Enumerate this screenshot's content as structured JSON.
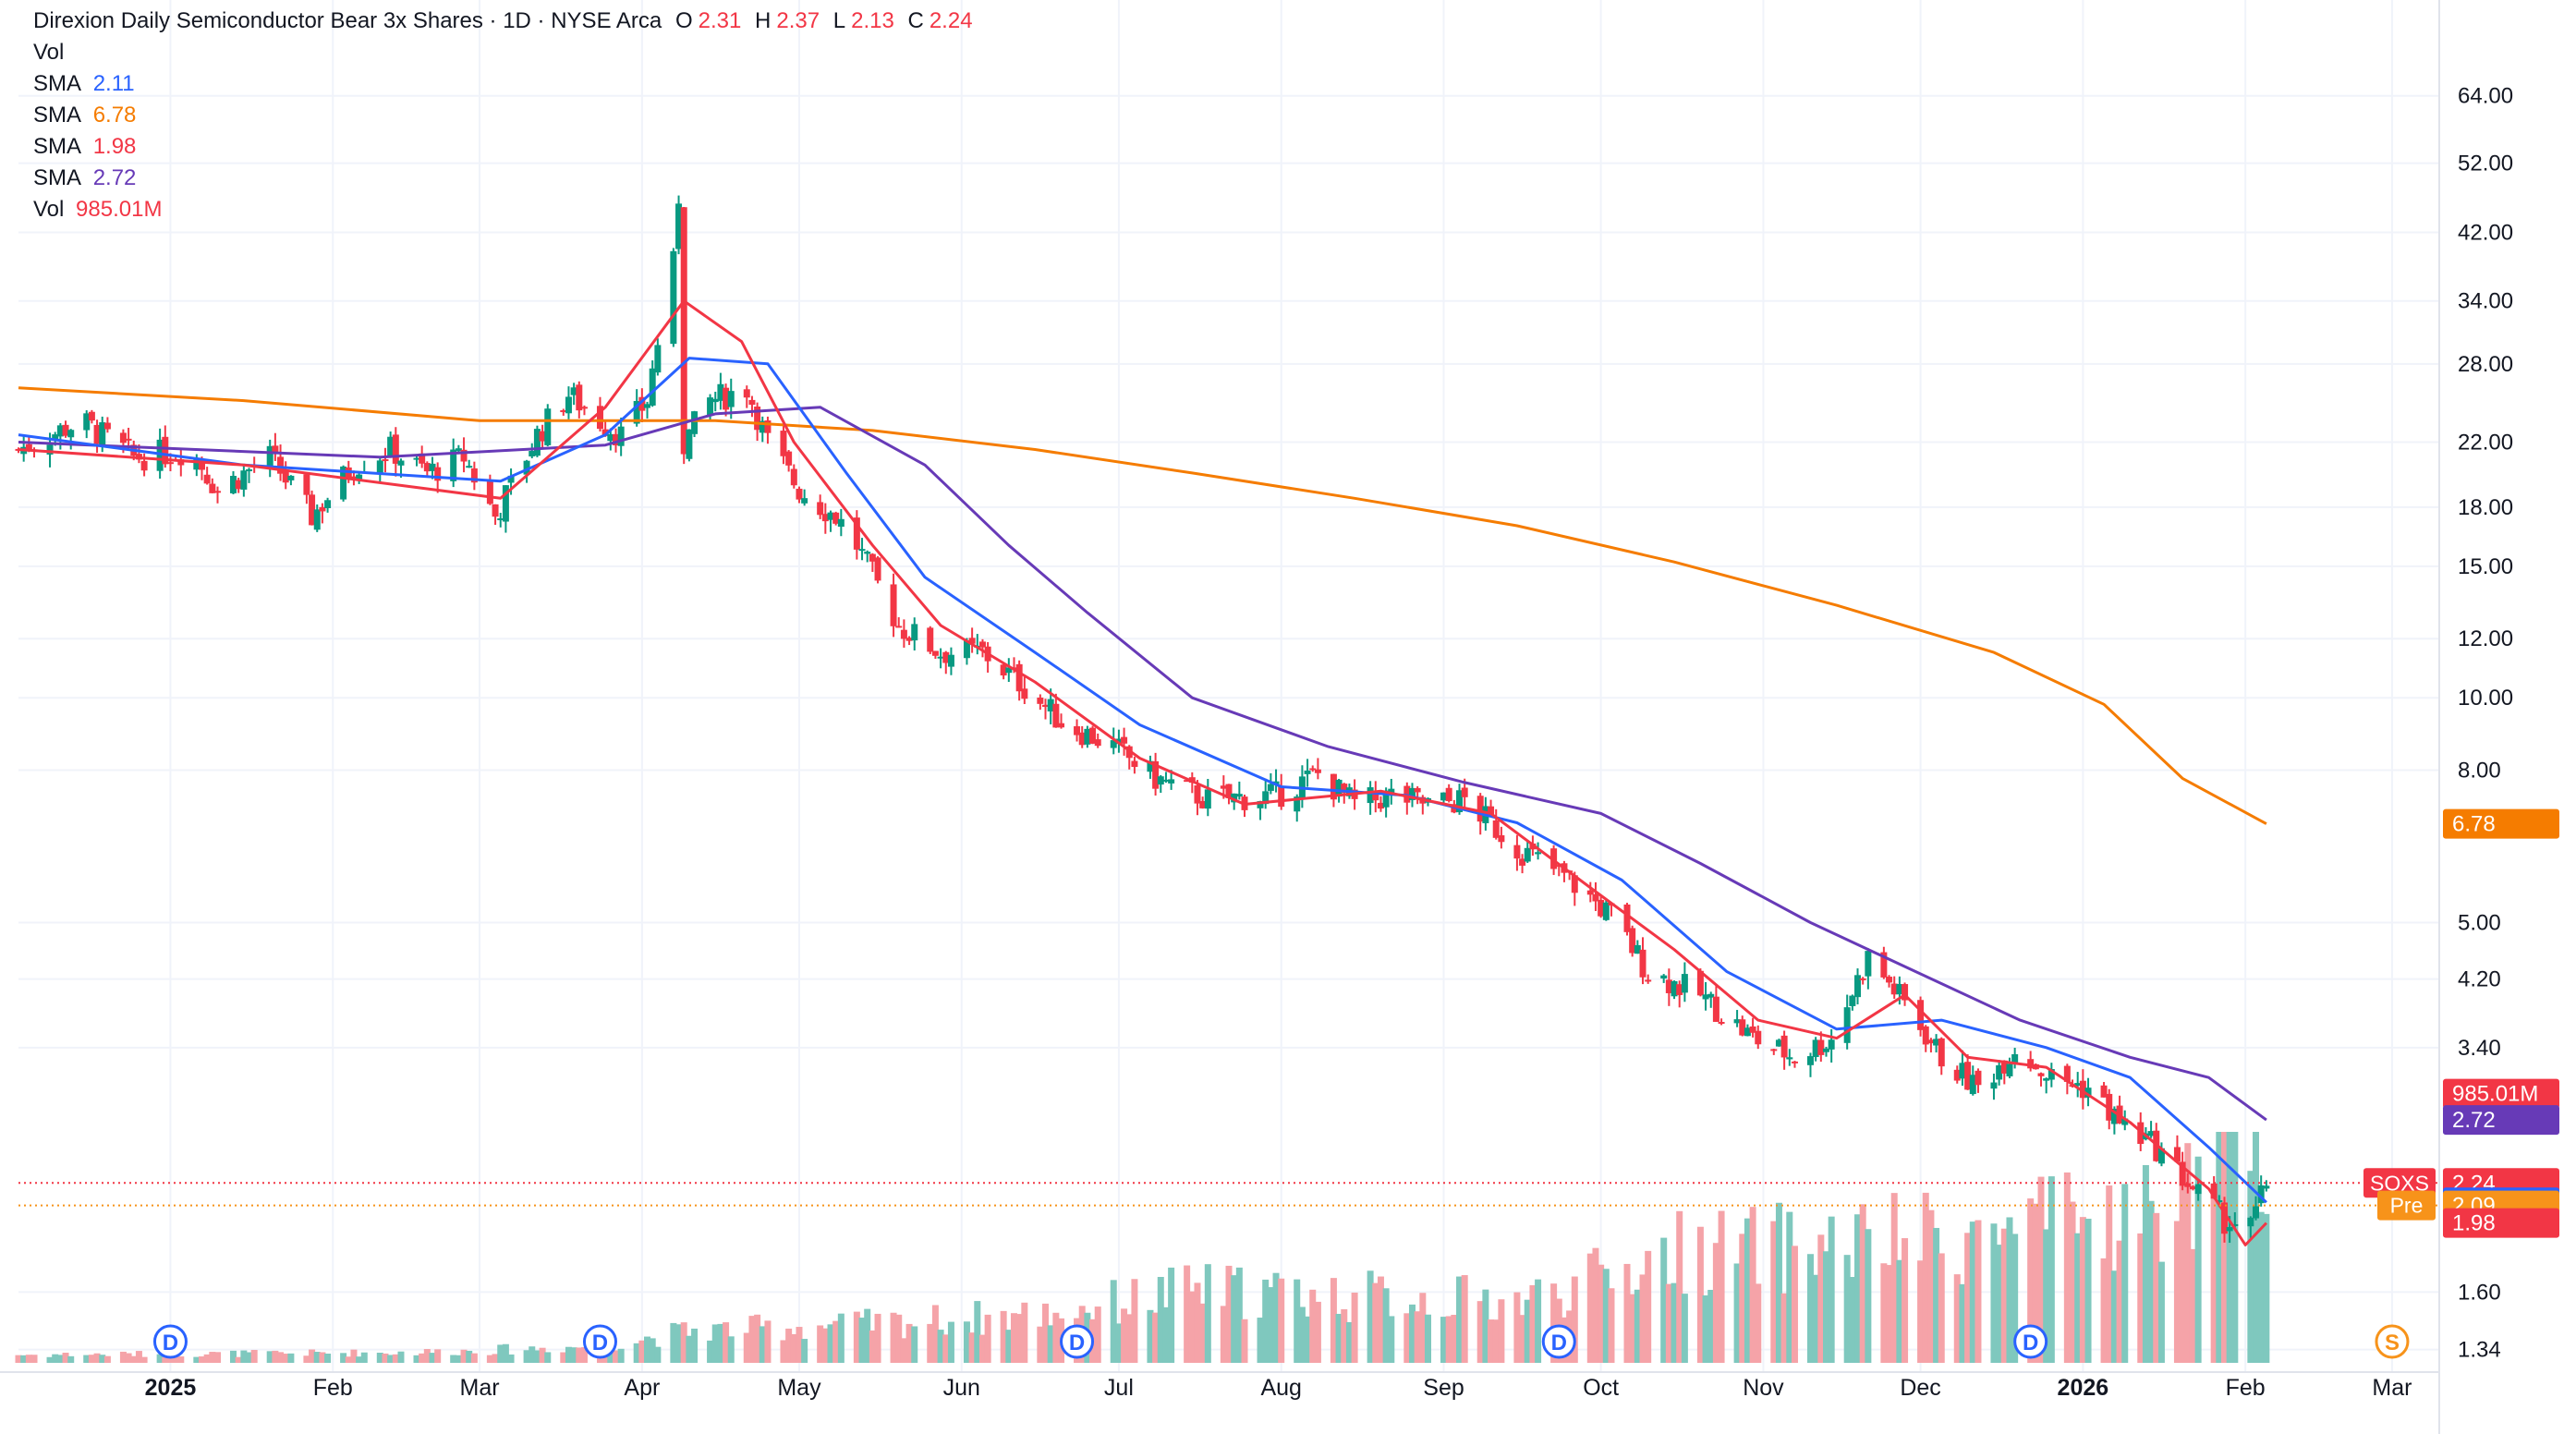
{
  "header": {
    "title": "Direxion Daily Semiconductor Bear 3x Shares · 1D · NYSE Arca",
    "ohlc": [
      {
        "k": "O",
        "v": "2.31"
      },
      {
        "k": "H",
        "v": "2.37"
      },
      {
        "k": "L",
        "v": "2.13"
      },
      {
        "k": "C",
        "v": "2.24"
      }
    ],
    "vol_label": "Vol",
    "studies": [
      {
        "name": "SMA",
        "value": "2.11",
        "color": "#2962ff"
      },
      {
        "name": "SMA",
        "value": "6.78",
        "color": "#f57c00"
      },
      {
        "name": "SMA",
        "value": "1.98",
        "color": "#f23645"
      },
      {
        "name": "SMA",
        "value": "2.72",
        "color": "#673ab7"
      }
    ],
    "vol_study": {
      "name": "Vol",
      "value": "985.01M",
      "color": "#f23645"
    }
  },
  "colors": {
    "up": "#089981",
    "down": "#f23645",
    "vol_up": "#7fc8be",
    "vol_down": "#f5a3a8",
    "grid": "#f0f3fa",
    "axis_text": "#131722",
    "sma_blue": "#2962ff",
    "sma_orange": "#f57c00",
    "sma_red": "#f23645",
    "sma_purple": "#673ab7",
    "symbol_tag": "#f23645",
    "pre_tag": "#f7931a"
  },
  "markers": {
    "dividend_letter": "D",
    "dividend_positions": [
      "2025-01-01",
      "2025-03-24",
      "2025-06-23",
      "2025-09-23",
      "2025-12-22"
    ],
    "split_letter": "S",
    "split_position": "2026-03-01"
  },
  "price_tags": [
    {
      "label": "",
      "value": "6.78",
      "price": 6.78,
      "color": "#f57c00"
    },
    {
      "label": "",
      "value": "985.01M",
      "price": 2.95,
      "color": "#f23645"
    },
    {
      "label": "",
      "value": "2.72",
      "price": 2.72,
      "color": "#673ab7"
    },
    {
      "label": "SOXS",
      "value": "2.24",
      "price": 2.24,
      "color": "#f23645"
    },
    {
      "label": "",
      "value": "2.11",
      "price": 2.11,
      "color": "#2962ff"
    },
    {
      "label": "Pre",
      "value": "2.09",
      "price": 2.09,
      "color": "#f7931a"
    },
    {
      "label": "",
      "value": "1.98",
      "price": 1.98,
      "color": "#f23645"
    }
  ],
  "chart_data": {
    "type": "candlestick",
    "yscale": "log",
    "ylim": [
      1.25,
      86
    ],
    "xlim": [
      "2024-12-03",
      "2026-03-10"
    ],
    "y_ticks": [
      "64.00",
      "52.00",
      "42.00",
      "34.00",
      "28.00",
      "22.00",
      "18.00",
      "15.00",
      "12.00",
      "10.00",
      "8.00",
      "5.00",
      "4.20",
      "3.40",
      "1.60",
      "1.34"
    ],
    "x_ticks": [
      {
        "label": "2025",
        "date": "2025-01-01",
        "bold": true
      },
      {
        "label": "Feb",
        "date": "2025-02-01"
      },
      {
        "label": "Mar",
        "date": "2025-03-01"
      },
      {
        "label": "Apr",
        "date": "2025-04-01"
      },
      {
        "label": "May",
        "date": "2025-05-01"
      },
      {
        "label": "Jun",
        "date": "2025-06-01"
      },
      {
        "label": "Jul",
        "date": "2025-07-01"
      },
      {
        "label": "Aug",
        "date": "2025-08-01"
      },
      {
        "label": "Sep",
        "date": "2025-09-01"
      },
      {
        "label": "Oct",
        "date": "2025-10-01"
      },
      {
        "label": "Nov",
        "date": "2025-11-01"
      },
      {
        "label": "Dec",
        "date": "2025-12-01"
      },
      {
        "label": "2026",
        "date": "2026-01-01",
        "bold": true
      },
      {
        "label": "Feb",
        "date": "2026-02-01"
      },
      {
        "label": "Mar",
        "date": "2026-03-01"
      }
    ],
    "close_path": [
      [
        "2024-12-03",
        21.5
      ],
      [
        "2024-12-15",
        23.5
      ],
      [
        "2024-12-25",
        21.0
      ],
      [
        "2025-01-05",
        21.5
      ],
      [
        "2025-01-10",
        19.0
      ],
      [
        "2025-01-20",
        21.0
      ],
      [
        "2025-01-28",
        17.5
      ],
      [
        "2025-02-05",
        20.5
      ],
      [
        "2025-02-12",
        21.5
      ],
      [
        "2025-02-19",
        20.0
      ],
      [
        "2025-02-26",
        21.0
      ],
      [
        "2025-03-04",
        17.5
      ],
      [
        "2025-03-12",
        22.5
      ],
      [
        "2025-03-18",
        25.5
      ],
      [
        "2025-03-24",
        23.5
      ],
      [
        "2025-03-28",
        22.5
      ],
      [
        "2025-04-02",
        25.0
      ],
      [
        "2025-04-04",
        30.0
      ],
      [
        "2025-04-07",
        38.0
      ],
      [
        "2025-04-08",
        47.0
      ],
      [
        "2025-04-09",
        22.0
      ],
      [
        "2025-04-14",
        25.0
      ],
      [
        "2025-04-21",
        26.0
      ],
      [
        "2025-04-25",
        22.0
      ],
      [
        "2025-05-01",
        19.0
      ],
      [
        "2025-05-08",
        17.5
      ],
      [
        "2025-05-12",
        16.0
      ],
      [
        "2025-05-20",
        12.5
      ],
      [
        "2025-05-28",
        11.5
      ],
      [
        "2025-06-05",
        11.5
      ],
      [
        "2025-06-12",
        10.5
      ],
      [
        "2025-06-20",
        9.3
      ],
      [
        "2025-06-30",
        8.6
      ],
      [
        "2025-07-08",
        7.8
      ],
      [
        "2025-07-18",
        7.3
      ],
      [
        "2025-07-31",
        7.4
      ],
      [
        "2025-08-08",
        7.9
      ],
      [
        "2025-08-15",
        7.2
      ],
      [
        "2025-08-22",
        7.4
      ],
      [
        "2025-08-29",
        7.2
      ],
      [
        "2025-09-05",
        7.3
      ],
      [
        "2025-09-15",
        6.3
      ],
      [
        "2025-09-25",
        5.7
      ],
      [
        "2025-10-03",
        5.1
      ],
      [
        "2025-10-10",
        4.3
      ],
      [
        "2025-10-20",
        4.0
      ],
      [
        "2025-10-30",
        3.5
      ],
      [
        "2025-11-07",
        3.3
      ],
      [
        "2025-11-14",
        3.5
      ],
      [
        "2025-11-21",
        4.5
      ],
      [
        "2025-11-28",
        3.9
      ],
      [
        "2025-12-05",
        3.3
      ],
      [
        "2025-12-12",
        3.0
      ],
      [
        "2025-12-19",
        3.4
      ],
      [
        "2025-12-26",
        3.1
      ],
      [
        "2026-01-02",
        3.0
      ],
      [
        "2026-01-08",
        2.7
      ],
      [
        "2026-01-15",
        2.5
      ],
      [
        "2026-01-22",
        2.2
      ],
      [
        "2026-01-28",
        2.0
      ],
      [
        "2026-02-02",
        1.95
      ],
      [
        "2026-02-05",
        2.24
      ]
    ],
    "series": [
      {
        "name": "SMA",
        "value": 2.11,
        "color": "#2962ff"
      },
      {
        "name": "SMA",
        "value": 6.78,
        "color": "#f57c00"
      },
      {
        "name": "SMA",
        "value": 1.98,
        "color": "#f23645"
      },
      {
        "name": "SMA",
        "value": 2.72,
        "color": "#673ab7"
      }
    ],
    "sma_orange_path": [
      [
        "2024-12-03",
        26.0
      ],
      [
        "2025-01-15",
        25.0
      ],
      [
        "2025-03-01",
        23.5
      ],
      [
        "2025-04-15",
        23.5
      ],
      [
        "2025-05-15",
        22.8
      ],
      [
        "2025-06-15",
        21.5
      ],
      [
        "2025-07-15",
        20.0
      ],
      [
        "2025-08-15",
        18.5
      ],
      [
        "2025-09-15",
        17.0
      ],
      [
        "2025-10-15",
        15.2
      ],
      [
        "2025-11-15",
        13.3
      ],
      [
        "2025-12-15",
        11.5
      ],
      [
        "2026-01-05",
        9.8
      ],
      [
        "2026-01-20",
        7.8
      ],
      [
        "2026-02-05",
        6.78
      ]
    ],
    "sma_purple_path": [
      [
        "2024-12-03",
        22.0
      ],
      [
        "2025-02-10",
        21.0
      ],
      [
        "2025-03-25",
        21.8
      ],
      [
        "2025-04-15",
        24.0
      ],
      [
        "2025-05-05",
        24.5
      ],
      [
        "2025-05-25",
        20.5
      ],
      [
        "2025-06-10",
        16.0
      ],
      [
        "2025-06-25",
        13.0
      ],
      [
        "2025-07-15",
        10.0
      ],
      [
        "2025-08-10",
        8.6
      ],
      [
        "2025-09-05",
        7.7
      ],
      [
        "2025-10-01",
        7.0
      ],
      [
        "2025-10-20",
        6.0
      ],
      [
        "2025-11-10",
        5.0
      ],
      [
        "2025-11-30",
        4.3
      ],
      [
        "2025-12-20",
        3.7
      ],
      [
        "2026-01-10",
        3.3
      ],
      [
        "2026-01-25",
        3.1
      ],
      [
        "2026-02-05",
        2.72
      ]
    ],
    "sma_blue_path": [
      [
        "2024-12-03",
        22.5
      ],
      [
        "2025-01-15",
        20.5
      ],
      [
        "2025-03-05",
        19.5
      ],
      [
        "2025-03-25",
        22.5
      ],
      [
        "2025-04-10",
        28.5
      ],
      [
        "2025-04-25",
        28.0
      ],
      [
        "2025-05-10",
        20.0
      ],
      [
        "2025-05-25",
        14.5
      ],
      [
        "2025-06-15",
        11.5
      ],
      [
        "2025-07-05",
        9.2
      ],
      [
        "2025-08-01",
        7.6
      ],
      [
        "2025-08-25",
        7.4
      ],
      [
        "2025-09-15",
        6.8
      ],
      [
        "2025-10-05",
        5.7
      ],
      [
        "2025-10-25",
        4.3
      ],
      [
        "2025-11-15",
        3.6
      ],
      [
        "2025-12-05",
        3.7
      ],
      [
        "2025-12-25",
        3.4
      ],
      [
        "2026-01-10",
        3.1
      ],
      [
        "2026-01-25",
        2.5
      ],
      [
        "2026-02-05",
        2.11
      ]
    ],
    "sma_red_path": [
      [
        "2024-12-03",
        21.5
      ],
      [
        "2025-01-15",
        20.5
      ],
      [
        "2025-03-05",
        18.5
      ],
      [
        "2025-03-25",
        24.5
      ],
      [
        "2025-04-09",
        34.0
      ],
      [
        "2025-04-20",
        30.0
      ],
      [
        "2025-04-30",
        22.0
      ],
      [
        "2025-05-15",
        16.0
      ],
      [
        "2025-05-28",
        12.5
      ],
      [
        "2025-06-15",
        10.5
      ],
      [
        "2025-07-05",
        8.3
      ],
      [
        "2025-07-25",
        7.2
      ],
      [
        "2025-08-20",
        7.5
      ],
      [
        "2025-09-10",
        7.0
      ],
      [
        "2025-09-30",
        5.5
      ],
      [
        "2025-10-15",
        4.6
      ],
      [
        "2025-10-31",
        3.7
      ],
      [
        "2025-11-15",
        3.5
      ],
      [
        "2025-11-28",
        4.0
      ],
      [
        "2025-12-10",
        3.3
      ],
      [
        "2025-12-25",
        3.2
      ],
      [
        "2026-01-10",
        2.7
      ],
      [
        "2026-01-25",
        2.2
      ],
      [
        "2026-02-01",
        1.85
      ],
      [
        "2026-02-05",
        1.98
      ]
    ],
    "volume_max": 1000,
    "volume_path": [
      [
        "2024-12-03",
        35
      ],
      [
        "2025-02-15",
        45
      ],
      [
        "2025-03-20",
        70
      ],
      [
        "2025-04-10",
        140
      ],
      [
        "2025-05-15",
        170
      ],
      [
        "2025-06-15",
        210
      ],
      [
        "2025-07-15",
        320
      ],
      [
        "2025-08-15",
        290
      ],
      [
        "2025-09-15",
        270
      ],
      [
        "2025-10-15",
        480
      ],
      [
        "2025-11-15",
        510
      ],
      [
        "2025-12-15",
        560
      ],
      [
        "2026-01-15",
        650
      ],
      [
        "2026-02-05",
        985
      ]
    ]
  }
}
